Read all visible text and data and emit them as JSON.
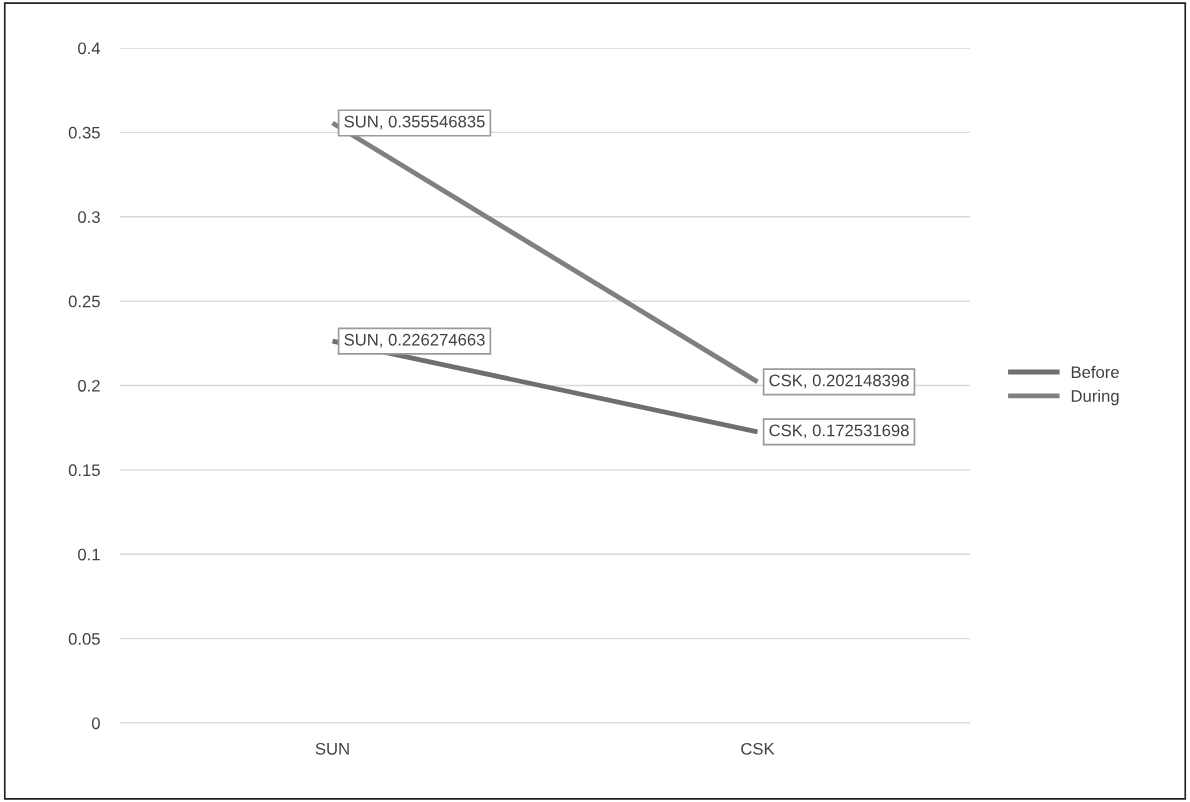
{
  "chart_data": {
    "type": "line",
    "categories": [
      "SUN",
      "CSK"
    ],
    "series": [
      {
        "name": "Before",
        "color": "#6f6f6f",
        "values": [
          0.226274663,
          0.172531698
        ],
        "value_labels": [
          "SUN, 0.226274663",
          "CSK, 0.172531698"
        ]
      },
      {
        "name": "During",
        "color": "#808080",
        "values": [
          0.355546835,
          0.202148398
        ],
        "value_labels": [
          "SUN, 0.355546835",
          "CSK, 0.202148398"
        ]
      }
    ],
    "ylim": [
      0,
      0.4
    ],
    "yticks": [
      0,
      {
        "value": 0.05,
        "label": "0.05"
      },
      {
        "value": 0.1,
        "label": "0.1"
      },
      {
        "value": 0.15,
        "label": "0.15"
      },
      {
        "value": 0.2,
        "label": "0.2"
      },
      {
        "value": 0.25,
        "label": "0.25"
      },
      {
        "value": 0.3,
        "label": "0.3"
      },
      {
        "value": 0.35,
        "label": "0.35"
      },
      {
        "value": 0.4,
        "label": "0.4"
      }
    ],
    "grid": "y",
    "legend": "right",
    "marker": "none",
    "line_style": "solid"
  }
}
